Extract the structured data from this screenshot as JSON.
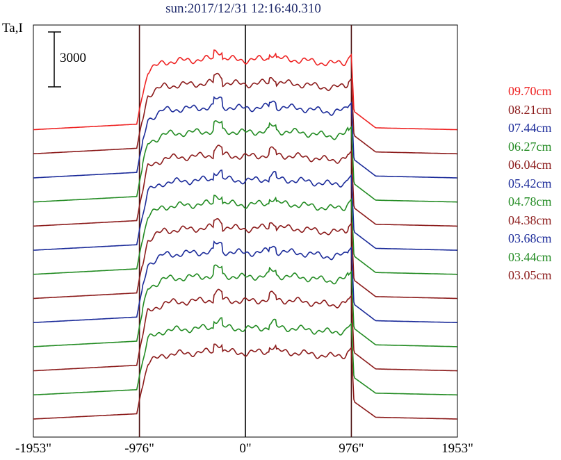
{
  "chart_data": {
    "type": "line",
    "title": "sun:2017/12/31 12:16:40.310",
    "ylabel": "Ta,I",
    "scale_bar": "3000",
    "xlabel": "",
    "xticks": [
      "-1953\"",
      "-976\"",
      "0\"",
      "976\"",
      "1953\""
    ],
    "xlim": [
      -1953,
      1953
    ],
    "vertical_lines": [
      -976,
      0,
      976
    ],
    "grid": false,
    "legend_position": "right",
    "series": [
      {
        "name": "09.70cm",
        "color": "#ee2222",
        "offset": 11,
        "x": [
          -1953,
          -1000,
          -976,
          -900,
          -750,
          -500,
          -250,
          0,
          250,
          500,
          800,
          920,
          976,
          1000,
          1200,
          1953
        ],
        "values": [
          0,
          300,
          1100,
          3200,
          3700,
          3800,
          3900,
          3800,
          3900,
          3800,
          3600,
          3700,
          4100,
          1000,
          100,
          0
        ]
      },
      {
        "name": "08.21cm",
        "color": "#8b1a1a",
        "offset": 10,
        "x": [
          -1953,
          -1000,
          -976,
          -900,
          -750,
          -500,
          -250,
          0,
          250,
          500,
          800,
          920,
          976,
          1000,
          1200,
          1953
        ],
        "values": [
          0,
          300,
          1100,
          3200,
          3700,
          3800,
          3900,
          3800,
          3900,
          3800,
          3600,
          3700,
          4100,
          1000,
          100,
          0
        ]
      },
      {
        "name": "07.44cm",
        "color": "#1a2a99",
        "offset": 9,
        "x": [
          -1953,
          -1000,
          -976,
          -900,
          -750,
          -500,
          -250,
          0,
          250,
          500,
          800,
          920,
          976,
          1000,
          1200,
          1953
        ],
        "values": [
          0,
          300,
          1100,
          3200,
          3700,
          3800,
          3900,
          3800,
          3900,
          3800,
          3600,
          3700,
          4100,
          1000,
          100,
          0
        ]
      },
      {
        "name": "06.27cm",
        "color": "#228b22",
        "offset": 8,
        "x": [
          -1953,
          -1000,
          -976,
          -900,
          -750,
          -500,
          -250,
          0,
          250,
          500,
          800,
          920,
          976,
          1000,
          1200,
          1953
        ],
        "values": [
          0,
          300,
          1100,
          3200,
          3700,
          3800,
          3900,
          3800,
          3900,
          3800,
          3600,
          3700,
          4100,
          1000,
          100,
          0
        ]
      },
      {
        "name": "06.04cm",
        "color": "#8b1a1a",
        "offset": 7,
        "x": [
          -1953,
          -1000,
          -976,
          -900,
          -750,
          -500,
          -250,
          0,
          250,
          500,
          800,
          920,
          976,
          1000,
          1200,
          1953
        ],
        "values": [
          0,
          300,
          1100,
          3200,
          3700,
          3800,
          3900,
          3800,
          3900,
          3800,
          3600,
          3700,
          4100,
          1000,
          100,
          0
        ]
      },
      {
        "name": "05.42cm",
        "color": "#1a2a99",
        "offset": 6,
        "x": [
          -1953,
          -1000,
          -976,
          -900,
          -750,
          -500,
          -250,
          0,
          250,
          500,
          800,
          920,
          976,
          1000,
          1200,
          1953
        ],
        "values": [
          0,
          300,
          1100,
          3200,
          3700,
          3800,
          3900,
          3800,
          3900,
          3800,
          3600,
          3700,
          4100,
          1000,
          100,
          0
        ]
      },
      {
        "name": "04.78cm",
        "color": "#228b22",
        "offset": 5,
        "x": [
          -1953,
          -1000,
          -976,
          -900,
          -750,
          -500,
          -250,
          0,
          250,
          500,
          800,
          920,
          976,
          1000,
          1200,
          1953
        ],
        "values": [
          0,
          300,
          1100,
          3200,
          3700,
          3800,
          3900,
          3800,
          3900,
          3800,
          3600,
          3700,
          4100,
          1000,
          100,
          0
        ]
      },
      {
        "name": "04.38cm",
        "color": "#8b1a1a",
        "offset": 4,
        "x": [
          -1953,
          -1000,
          -976,
          -900,
          -750,
          -500,
          -250,
          0,
          250,
          500,
          800,
          920,
          976,
          1000,
          1200,
          1953
        ],
        "values": [
          0,
          300,
          1100,
          3200,
          3700,
          3800,
          3900,
          3800,
          3900,
          3800,
          3600,
          3700,
          4100,
          1000,
          100,
          0
        ]
      },
      {
        "name": "03.68cm",
        "color": "#1a2a99",
        "offset": 3,
        "x": [
          -1953,
          -1000,
          -976,
          -900,
          -750,
          -500,
          -250,
          0,
          250,
          500,
          800,
          920,
          976,
          1000,
          1200,
          1953
        ],
        "values": [
          0,
          300,
          1100,
          3200,
          3700,
          3800,
          3900,
          3800,
          3900,
          3800,
          3600,
          3700,
          4100,
          1000,
          100,
          0
        ]
      },
      {
        "name": "03.44cm",
        "color": "#228b22",
        "offset": 2,
        "x": [
          -1953,
          -1000,
          -976,
          -900,
          -750,
          -500,
          -250,
          0,
          250,
          500,
          800,
          920,
          976,
          1000,
          1200,
          1953
        ],
        "values": [
          0,
          300,
          1100,
          3200,
          3700,
          3800,
          3900,
          3800,
          3900,
          3800,
          3600,
          3700,
          4100,
          1000,
          100,
          0
        ]
      },
      {
        "name": "03.05cm",
        "color": "#8b1a1a",
        "offset": 1,
        "x": [
          -1953,
          -1000,
          -976,
          -900,
          -750,
          -500,
          -250,
          0,
          250,
          500,
          800,
          920,
          976,
          1000,
          1200,
          1953
        ],
        "values": [
          0,
          300,
          1100,
          3200,
          3700,
          3800,
          3900,
          3800,
          3900,
          3800,
          3600,
          3700,
          4100,
          1000,
          100,
          0
        ]
      }
    ],
    "extra_traces": [
      {
        "color": "#228b22",
        "offset": 0
      },
      {
        "color": "#8b1a1a",
        "offset": -1
      }
    ]
  }
}
